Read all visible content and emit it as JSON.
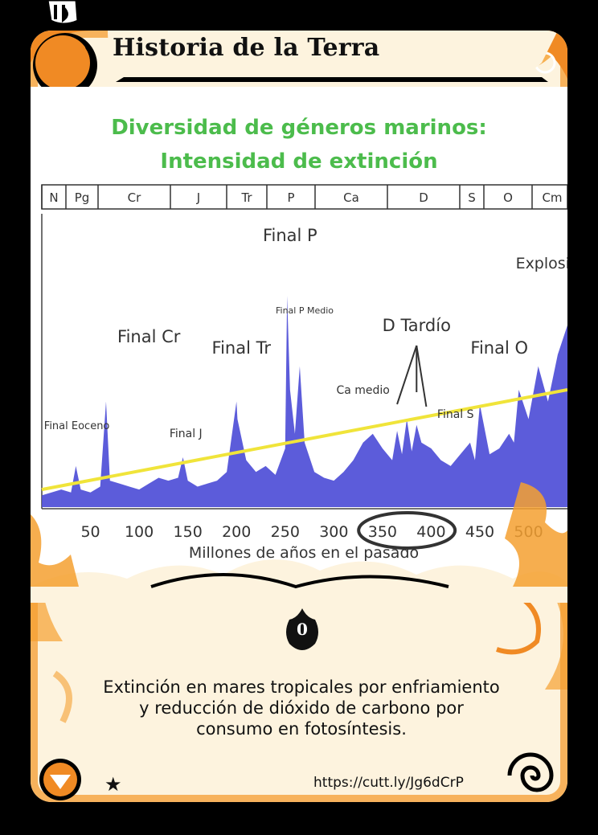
{
  "card": {
    "title": "Historia de la Terra",
    "icon_value": "0",
    "icon": "flame-icon",
    "description_lines": [
      "Extinción en mares tropicales por enfriamiento",
      "y reducción de dióxido de carbono por",
      "consumo en fotosíntesis."
    ],
    "url": "https://cutt.ly/Jg6dCrP",
    "rarity_icon": "star-icon",
    "colors": {
      "accent": "#f08a24",
      "frame": "#000000",
      "panel": "#fdf3de"
    }
  },
  "chart_data": {
    "type": "area",
    "title": "Diversidad de géneros marinos:",
    "subtitle": "Intensidad de extinción",
    "xlabel": "Millones de años en el pasado",
    "x_ticks": [
      "50",
      "100",
      "150",
      "200",
      "250",
      "300",
      "350",
      "400",
      "450",
      "500"
    ],
    "periods": [
      "N",
      "Pg",
      "Cr",
      "J",
      "Tr",
      "P",
      "Ca",
      "D",
      "S",
      "O",
      "Cm"
    ],
    "annotations": [
      "Final P",
      "Final Cr",
      "Final Tr",
      "Final P Medio",
      "D Tardío",
      "Final O",
      "Ca medio",
      "Final S",
      "Final J",
      "Final Eoceno",
      "Explosión Cm"
    ],
    "x": [
      0,
      10,
      20,
      30,
      35,
      40,
      50,
      60,
      66,
      70,
      80,
      90,
      100,
      110,
      120,
      130,
      140,
      145,
      150,
      160,
      170,
      180,
      190,
      200,
      201,
      210,
      220,
      230,
      240,
      250,
      252,
      255,
      260,
      265,
      270,
      280,
      290,
      300,
      310,
      320,
      330,
      340,
      350,
      360,
      365,
      370,
      375,
      380,
      385,
      390,
      400,
      410,
      420,
      430,
      440,
      445,
      450,
      460,
      470,
      480,
      485,
      490,
      500,
      510,
      520,
      530,
      540
    ],
    "values": [
      4,
      5,
      6,
      5,
      14,
      6,
      5,
      7,
      36,
      9,
      8,
      7,
      6,
      8,
      10,
      9,
      10,
      17,
      9,
      7,
      8,
      9,
      12,
      36,
      30,
      16,
      12,
      14,
      11,
      20,
      72,
      40,
      25,
      48,
      22,
      12,
      10,
      9,
      12,
      16,
      22,
      25,
      20,
      16,
      26,
      18,
      30,
      19,
      28,
      22,
      20,
      16,
      14,
      18,
      22,
      16,
      35,
      18,
      20,
      25,
      22,
      40,
      30,
      48,
      36,
      52,
      62
    ],
    "trend": [
      [
        0,
        6
      ],
      [
        540,
        40
      ]
    ],
    "highlight": "350–400",
    "xlim": [
      0,
      540
    ],
    "ylim": [
      0,
      100
    ]
  }
}
